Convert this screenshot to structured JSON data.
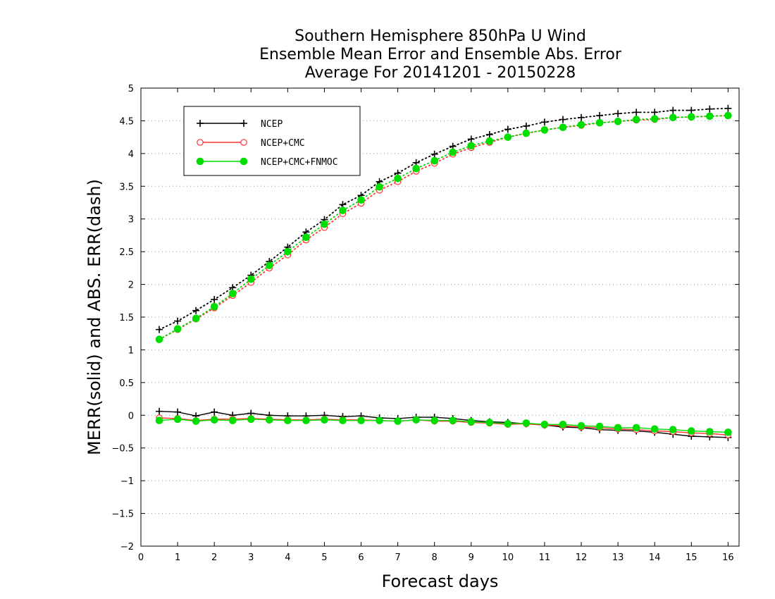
{
  "chart_data": {
    "type": "line",
    "title": [
      "Southern Hemisphere 850hPa U Wind",
      "Ensemble Mean Error and Ensemble Abs. Error",
      "Average For 20141201 - 20150228"
    ],
    "xlabel": "Forecast days",
    "ylabel": "MERR(solid) and ABS. ERR(dash)",
    "xlim": [
      0,
      16.3
    ],
    "ylim": [
      -2,
      5
    ],
    "x_ticks": [
      0,
      1,
      2,
      3,
      4,
      5,
      6,
      7,
      8,
      9,
      10,
      11,
      12,
      13,
      14,
      15,
      16
    ],
    "y_ticks": [
      -2,
      -1.5,
      -1,
      -0.5,
      0,
      0.5,
      1,
      1.5,
      2,
      2.5,
      3,
      3.5,
      4,
      4.5,
      5
    ],
    "grid": "horizontal-dotted",
    "legend_position": "top-left",
    "x": [
      0.5,
      1,
      1.5,
      2,
      2.5,
      3,
      3.5,
      4,
      4.5,
      5,
      5.5,
      6,
      6.5,
      7,
      7.5,
      8,
      8.5,
      9,
      9.5,
      10,
      10.5,
      11,
      11.5,
      12,
      12.5,
      13,
      13.5,
      14,
      14.5,
      15,
      15.5,
      16
    ],
    "series": [
      {
        "name": "NCEP",
        "color": "#000000",
        "marker": "plus",
        "abs_err": [
          1.31,
          1.44,
          1.6,
          1.77,
          1.95,
          2.14,
          2.35,
          2.57,
          2.8,
          2.99,
          3.22,
          3.36,
          3.57,
          3.7,
          3.86,
          3.99,
          4.11,
          4.22,
          4.29,
          4.37,
          4.42,
          4.48,
          4.52,
          4.55,
          4.58,
          4.61,
          4.63,
          4.63,
          4.66,
          4.66,
          4.68,
          4.69
        ],
        "mean_err": [
          0.06,
          0.05,
          -0.01,
          0.05,
          0.0,
          0.03,
          0.0,
          -0.01,
          -0.01,
          0.0,
          -0.02,
          -0.01,
          -0.04,
          -0.05,
          -0.03,
          -0.03,
          -0.05,
          -0.08,
          -0.1,
          -0.11,
          -0.13,
          -0.15,
          -0.18,
          -0.19,
          -0.22,
          -0.23,
          -0.24,
          -0.26,
          -0.29,
          -0.32,
          -0.33,
          -0.34
        ]
      },
      {
        "name": "NCEP+CMC",
        "color": "#ff3333",
        "marker": "open-circle",
        "abs_err": [
          1.16,
          1.31,
          1.47,
          1.64,
          1.83,
          2.03,
          2.25,
          2.45,
          2.68,
          2.87,
          3.08,
          3.24,
          3.44,
          3.57,
          3.73,
          3.85,
          3.99,
          4.09,
          4.17,
          4.25,
          4.31,
          4.36,
          4.4,
          4.43,
          4.47,
          4.49,
          4.51,
          4.52,
          4.55,
          4.56,
          4.57,
          4.58
        ],
        "mean_err": [
          -0.04,
          -0.05,
          -0.08,
          -0.06,
          -0.06,
          -0.05,
          -0.06,
          -0.07,
          -0.07,
          -0.06,
          -0.07,
          -0.07,
          -0.08,
          -0.09,
          -0.07,
          -0.09,
          -0.09,
          -0.11,
          -0.12,
          -0.14,
          -0.13,
          -0.15,
          -0.16,
          -0.18,
          -0.19,
          -0.21,
          -0.22,
          -0.24,
          -0.25,
          -0.27,
          -0.28,
          -0.3
        ]
      },
      {
        "name": "NCEP+CMC+FNMOC",
        "color": "#00dd00",
        "marker": "filled-circle",
        "abs_err": [
          1.16,
          1.32,
          1.48,
          1.66,
          1.86,
          2.08,
          2.29,
          2.5,
          2.72,
          2.92,
          3.13,
          3.29,
          3.49,
          3.62,
          3.77,
          3.89,
          4.02,
          4.12,
          4.19,
          4.25,
          4.31,
          4.36,
          4.4,
          4.44,
          4.47,
          4.49,
          4.52,
          4.53,
          4.55,
          4.56,
          4.57,
          4.58
        ],
        "mean_err": [
          -0.08,
          -0.06,
          -0.09,
          -0.07,
          -0.08,
          -0.06,
          -0.07,
          -0.08,
          -0.08,
          -0.07,
          -0.08,
          -0.08,
          -0.08,
          -0.09,
          -0.07,
          -0.08,
          -0.08,
          -0.1,
          -0.11,
          -0.13,
          -0.12,
          -0.14,
          -0.14,
          -0.16,
          -0.17,
          -0.19,
          -0.19,
          -0.21,
          -0.22,
          -0.24,
          -0.25,
          -0.26
        ]
      }
    ]
  }
}
